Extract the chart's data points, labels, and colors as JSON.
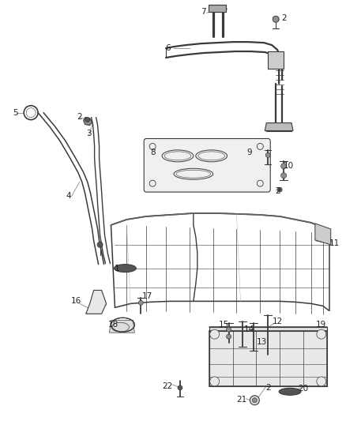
{
  "bg_color": "#ffffff",
  "fig_width": 4.38,
  "fig_height": 5.33,
  "dpi": 100,
  "line_color": "#3a3a3a",
  "light_gray": "#c8c8c8",
  "mid_gray": "#909090",
  "dark_gray": "#555555",
  "label_fontsize": 7.5,
  "label_color": "#222222",
  "leader_color": "#888888",
  "leader_lw": 0.6,
  "part_lw": 0.8
}
